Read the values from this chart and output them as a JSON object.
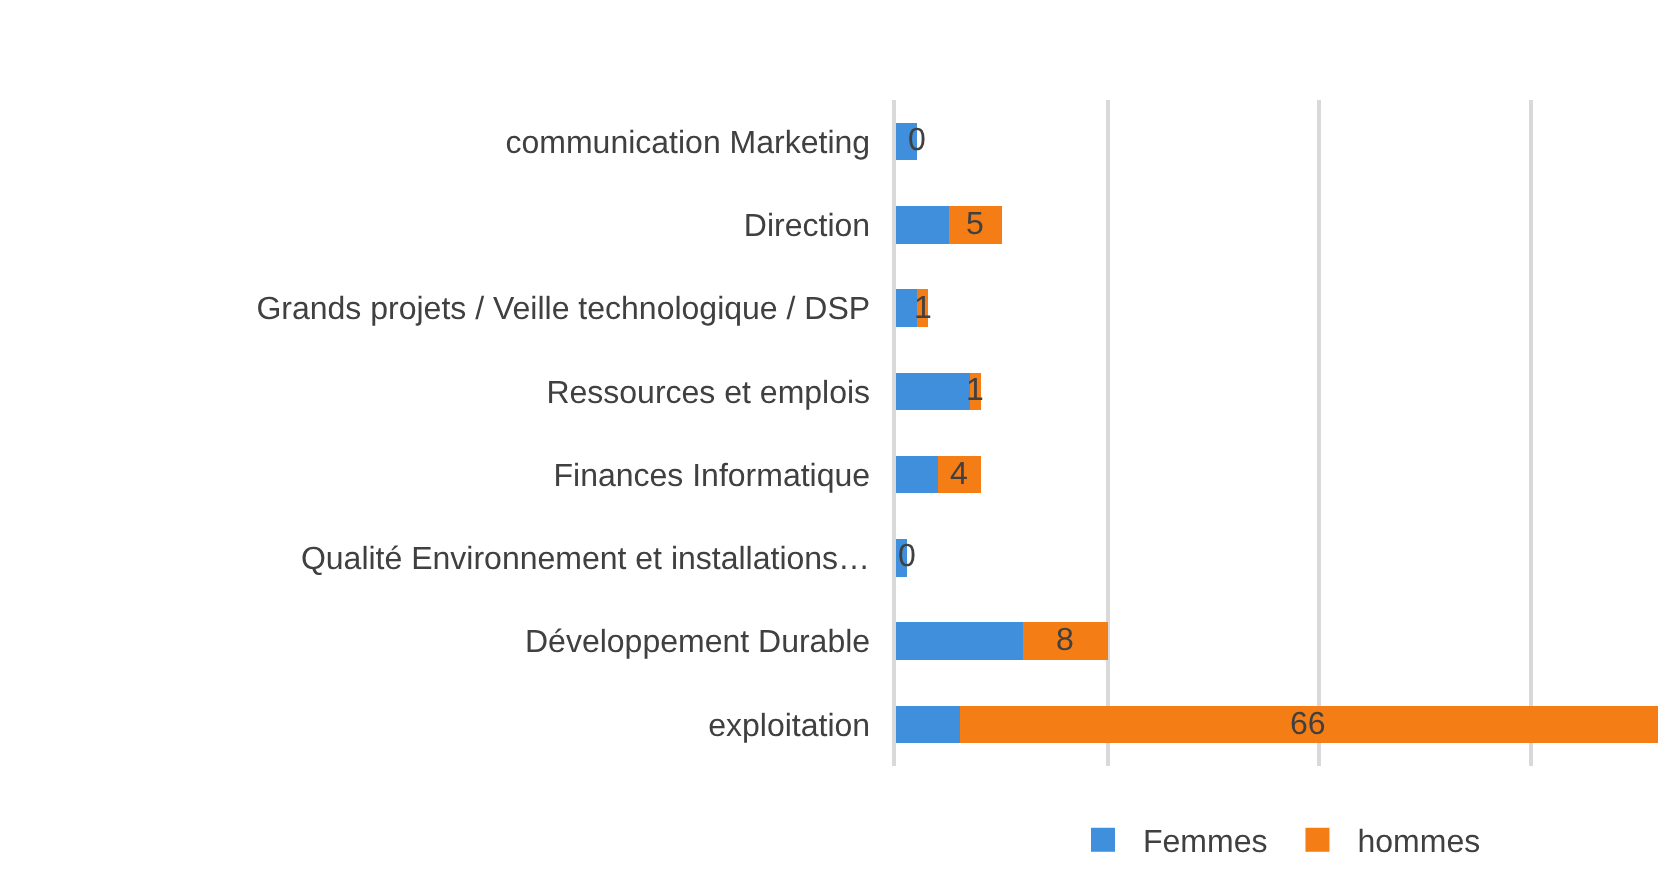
{
  "chart_data": {
    "type": "bar",
    "orientation": "horizontal",
    "stacked": true,
    "categories": [
      "communication Marketing",
      "Direction",
      "Grands projets / Veille technologique / DSP",
      "Ressources et emplois",
      "Finances Informatique",
      "Qualité Environnement et installations…",
      "Développement Durable",
      "exploitation"
    ],
    "series": [
      {
        "name": "Femmes",
        "color": "#3f8fdc",
        "values": [
          2,
          5,
          2,
          7,
          4,
          1,
          12,
          6
        ]
      },
      {
        "name": "hommes",
        "color": "#f57d15",
        "values": [
          0,
          5,
          1,
          1,
          4,
          0,
          8,
          66
        ],
        "value_labels": [
          "0",
          "5",
          "1",
          "1",
          "4",
          "0",
          "8",
          "66"
        ]
      }
    ],
    "xlim": [
      0,
      72
    ],
    "xticks": [
      {
        "value": 0,
        "label": null
      },
      {
        "value": 20,
        "label": null
      },
      {
        "value": 40,
        "label": null
      },
      {
        "value": 60,
        "label": null
      }
    ],
    "tick_labels": "y",
    "grid": "x",
    "legend": "bottom"
  }
}
